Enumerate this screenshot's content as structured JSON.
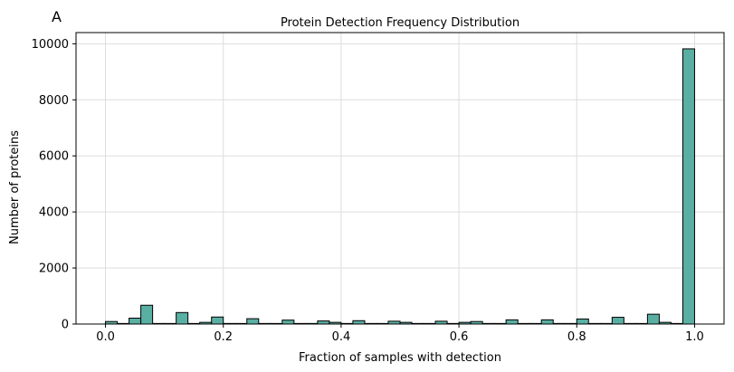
{
  "panel_label": "A",
  "chart_data": {
    "type": "bar",
    "title": "Protein Detection Frequency Distribution",
    "xlabel": "Fraction of samples with detection",
    "ylabel": "Number of proteins",
    "xlim": [
      -0.05,
      1.05
    ],
    "ylim": [
      0,
      10400
    ],
    "xticks": [
      "0.0",
      "0.2",
      "0.4",
      "0.6",
      "0.8",
      "1.0"
    ],
    "yticks": [
      "0",
      "2000",
      "4000",
      "6000",
      "8000",
      "10000"
    ],
    "grid": true,
    "bar_color": "#5aafa3",
    "edge_color": "#000000",
    "bin_width": 0.02,
    "bins_start": [
      0.0,
      0.02,
      0.04,
      0.06,
      0.08,
      0.1,
      0.12,
      0.14,
      0.16,
      0.18,
      0.2,
      0.22,
      0.24,
      0.26,
      0.28,
      0.3,
      0.32,
      0.34,
      0.36,
      0.38,
      0.4,
      0.42,
      0.44,
      0.46,
      0.48,
      0.5,
      0.52,
      0.54,
      0.56,
      0.58,
      0.6,
      0.62,
      0.64,
      0.66,
      0.68,
      0.7,
      0.72,
      0.74,
      0.76,
      0.78,
      0.8,
      0.82,
      0.84,
      0.86,
      0.88,
      0.9,
      0.92,
      0.94,
      0.96,
      0.98
    ],
    "values": [
      90,
      20,
      210,
      670,
      20,
      20,
      410,
      20,
      60,
      250,
      20,
      20,
      190,
      20,
      20,
      140,
      20,
      20,
      110,
      60,
      20,
      120,
      20,
      20,
      100,
      60,
      20,
      20,
      100,
      20,
      60,
      90,
      20,
      20,
      150,
      20,
      20,
      150,
      20,
      20,
      180,
      20,
      20,
      240,
      20,
      20,
      350,
      60,
      20,
      9820
    ]
  }
}
